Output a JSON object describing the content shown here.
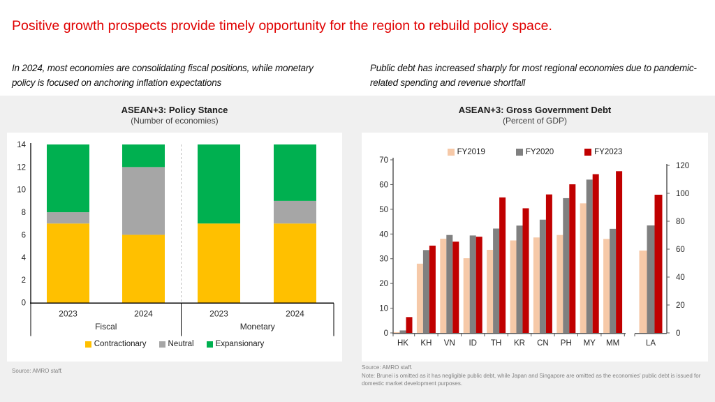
{
  "slide": {
    "headline": "Positive growth prospects provide timely opportunity for the region to rebuild policy space.",
    "left_takeaway": "In 2024, most economies are consolidating fiscal positions, while monetary policy is focused on anchoring inflation expectations",
    "right_takeaway": "Public debt has increased sharply for most regional economies due to pandemic-related spending and revenue shortfall"
  },
  "colors": {
    "headline_red": "#E00000",
    "band_gray": "#F0F0F0",
    "contractionary_yellow": "#FFC000",
    "neutral_gray": "#A6A6A6",
    "expansionary_green": "#00B050",
    "fy2019_peach": "#F6C9A8",
    "fy2020_gray": "#808080",
    "fy2023_darkred": "#C00000",
    "axis_gray": "#595959",
    "text_dark": "#262626"
  },
  "sources": {
    "left": "Source: AMRO staff.",
    "right": "Source: AMRO staff.",
    "right_note": "Note: Brunei is omitted as it has negligible public debt, while Japan and Singapore are omitted as the economies' public debt is issued for domestic market development purposes."
  },
  "chart_data": [
    {
      "type": "bar",
      "stacked": true,
      "title": "ASEAN+3: Policy Stance",
      "subtitle": "(Number of economies)",
      "categories": [
        "2023",
        "2024",
        "2023",
        "2024"
      ],
      "group_labels": [
        "Fiscal",
        "Monetary"
      ],
      "series": [
        {
          "name": "Contractionary",
          "color": "#FFC000",
          "values": [
            7,
            6,
            7,
            7
          ]
        },
        {
          "name": "Neutral",
          "color": "#A6A6A6",
          "values": [
            1,
            6,
            0,
            2
          ]
        },
        {
          "name": "Expansionary",
          "color": "#00B050",
          "values": [
            6,
            2,
            7,
            5
          ]
        }
      ],
      "ylim": [
        0,
        14
      ],
      "yticks": [
        0,
        2,
        4,
        6,
        8,
        10,
        12,
        14
      ],
      "legend_position": "bottom",
      "grid": false
    },
    {
      "type": "bar",
      "stacked": false,
      "title": "ASEAN+3: Gross Government Debt",
      "subtitle": "(Percent of GDP)",
      "categories": [
        "HK",
        "KH",
        "VN",
        "ID",
        "TH",
        "KR",
        "CN",
        "PH",
        "MY",
        "MM",
        "LA"
      ],
      "right_axis_categories": [
        "LA"
      ],
      "series": [
        {
          "name": "FY2019",
          "color": "#F6C9A8",
          "values": [
            0.3,
            28.0,
            38.1,
            30.2,
            33.6,
            37.4,
            38.6,
            39.6,
            52.4,
            38.0,
            59
          ]
        },
        {
          "name": "FY2020",
          "color": "#808080",
          "values": [
            1.0,
            33.5,
            39.6,
            39.4,
            42.2,
            43.4,
            45.8,
            54.5,
            62.0,
            42.1,
            77
          ]
        },
        {
          "name": "FY2023",
          "color": "#C00000",
          "values": [
            6.4,
            35.3,
            36.9,
            38.9,
            54.8,
            50.4,
            56.0,
            60.1,
            64.2,
            65.4,
            99
          ]
        }
      ],
      "ylim_left": [
        0,
        70
      ],
      "yticks_left": [
        0,
        10,
        20,
        30,
        40,
        50,
        60,
        70
      ],
      "ylim_right": [
        0,
        120
      ],
      "yticks_right": [
        0,
        20,
        40,
        60,
        80,
        100,
        120
      ],
      "legend_position": "top",
      "grid": false
    }
  ]
}
